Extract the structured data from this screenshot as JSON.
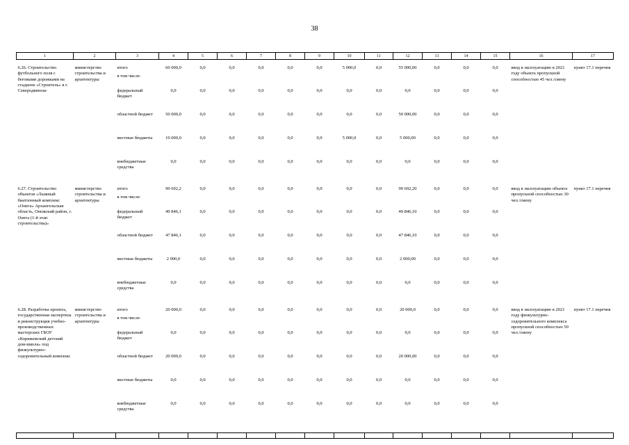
{
  "page": {
    "number": "38"
  },
  "table": {
    "column_numbers": [
      "1",
      "2",
      "3",
      "4",
      "5",
      "6",
      "7",
      "8",
      "9",
      "10",
      "11",
      "12",
      "13",
      "14",
      "15",
      "16",
      "17"
    ],
    "groups": [
      {
        "name": "6.26. Строительство футбольного поля с беговыми дорожками на стадионе «Строитель» в г. Северодвинске",
        "ministry": "министерство строительства и архитектуры",
        "rows": [
          {
            "label": "итого",
            "values": [
              "60 000,0",
              "0,0",
              "0,0",
              "0,0",
              "0,0",
              "0,0",
              "5 000,0",
              "0,0",
              "55 000,00",
              "0,0",
              "0,0",
              "0,0"
            ]
          },
          {
            "label": "в том числе:",
            "values": []
          },
          {
            "label": "федеральный бюджет",
            "values": [
              "0,0",
              "0,0",
              "0,0",
              "0,0",
              "0,0",
              "0,0",
              "0,0",
              "0,0",
              "0,0",
              "0,0",
              "0,0",
              "0,0"
            ]
          },
          {
            "label": "областной бюджет",
            "values": [
              "50 000,0",
              "0,0",
              "0,0",
              "0,0",
              "0,0",
              "0,0",
              "0,0",
              "0,0",
              "50 000,00",
              "0,0",
              "0,0",
              "0,0"
            ]
          },
          {
            "label": "местные бюджеты",
            "values": [
              "10 000,0",
              "0,0",
              "0,0",
              "0,0",
              "0,0",
              "0,0",
              "5 000,0",
              "0,0",
              "5 000,00",
              "0,0",
              "0,0",
              "0,0"
            ]
          },
          {
            "label": "внебюджетные средства",
            "values": [
              "0,0",
              "0,0",
              "0,0",
              "0,0",
              "0,0",
              "0,0",
              "0,0",
              "0,0",
              "0,0",
              "0,0",
              "0,0",
              "0,0"
            ]
          }
        ],
        "note": "ввод в эксплуатацию в 2021 году объекта пропускной способностью 45 чел./смену",
        "ref": "пункт 17.1 перечня"
      },
      {
        "name": "6.27. Строительство объектов «Лыжный биатлонный комплекс «Онега» Архангельская область, Онежский район, г. Онега (1-й этап строительства)»",
        "ministry": "министерство строительства и архитектуры",
        "rows": [
          {
            "label": "итого",
            "values": [
              "99 692,2",
              "0,0",
              "0,0",
              "0,0",
              "0,0",
              "0,0",
              "0,0",
              "0,0",
              "99 692,20",
              "0,0",
              "0,0",
              "0,0"
            ]
          },
          {
            "label": "в том числе:",
            "values": []
          },
          {
            "label": "федеральный бюджет",
            "values": [
              "49 846,1",
              "0,0",
              "0,0",
              "0,0",
              "0,0",
              "0,0",
              "0,0",
              "0,0",
              "49 846,10",
              "0,0",
              "0,0",
              "0,0"
            ]
          },
          {
            "label": "областной бюджет",
            "values": [
              "47 846,1",
              "0,0",
              "0,0",
              "0,0",
              "0,0",
              "0,0",
              "0,0",
              "0,0",
              "47 846,10",
              "0,0",
              "0,0",
              "0,0"
            ]
          },
          {
            "label": "местные бюджеты",
            "values": [
              "2 000,0",
              "0,0",
              "0,0",
              "0,0",
              "0,0",
              "0,0",
              "0,0",
              "0,0",
              "2 000,00",
              "0,0",
              "0,0",
              "0,0"
            ]
          },
          {
            "label": "внебюджетные средства",
            "values": [
              "0,0",
              "0,0",
              "0,0",
              "0,0",
              "0,0",
              "0,0",
              "0,0",
              "0,0",
              "0,0",
              "0,0",
              "0,0",
              "0,0"
            ]
          }
        ],
        "note": "ввод в эксплуатацию объекта пропускной способностью 30 чел./смену",
        "ref": "пункт 17.1 перечня"
      },
      {
        "name": "6.28. Разработка проекта, государственная экспертиза и реконструкция учебно-производственных мастерских ГБОУ «Коряжемский детский дом-школа» под физкультурно-оздоровительный комплекс",
        "ministry": "министерство строительства и архитектуры",
        "rows": [
          {
            "label": "итого",
            "values": [
              "20 000,0",
              "0,0",
              "0,0",
              "0,0",
              "0,0",
              "0,0",
              "0,0",
              "0,0",
              "20 000,0",
              "0,0",
              "0,0",
              "0,0"
            ]
          },
          {
            "label": "в том числе:",
            "values": []
          },
          {
            "label": "федеральный бюджет",
            "values": [
              "0,0",
              "0,0",
              "0,0",
              "0,0",
              "0,0",
              "0,0",
              "0,0",
              "0,0",
              "0,0",
              "0,0",
              "0,0",
              "0,0"
            ]
          },
          {
            "label": "областной бюджет",
            "values": [
              "20 000,0",
              "0,0",
              "0,0",
              "0,0",
              "0,0",
              "0,0",
              "0,0",
              "0,0",
              "20 000,00",
              "0,0",
              "0,0",
              "0,0"
            ]
          },
          {
            "label": "местные бюджеты",
            "values": [
              "0,0",
              "0,0",
              "0,0",
              "0,0",
              "0,0",
              "0,0",
              "0,0",
              "0,0",
              "0,0",
              "0,0",
              "0,0",
              "0,0"
            ]
          },
          {
            "label": "внебюджетные средства",
            "values": [
              "0,0",
              "0,0",
              "0,0",
              "0,0",
              "0,0",
              "0,0",
              "0,0",
              "0,0",
              "0,0",
              "0,0",
              "0,0",
              "0,0"
            ]
          }
        ],
        "note": "ввод в эксплуатацию в 2021 году физкультурно-оздоровительного комплекса пропускной способностью 50 чел./смену",
        "ref": "пункт 17.1 перечня"
      }
    ]
  }
}
